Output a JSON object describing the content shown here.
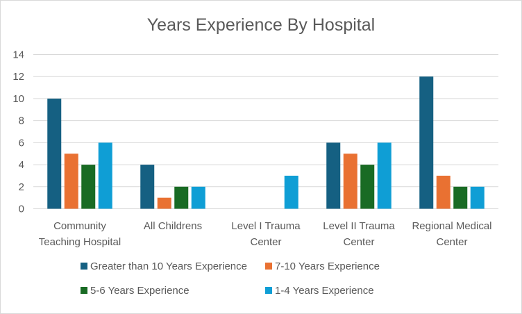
{
  "chart_data": {
    "type": "bar",
    "title": "Years Experience By Hospital",
    "xlabel": "",
    "ylabel": "",
    "ylim": [
      0,
      14
    ],
    "yticks": [
      "0",
      "2",
      "4",
      "6",
      "8",
      "10",
      "12",
      "14"
    ],
    "grid": true,
    "legend_position": "bottom",
    "categories": [
      [
        "Community",
        "Teaching Hospital"
      ],
      [
        "All Childrens"
      ],
      [
        "Level I Trauma",
        "Center"
      ],
      [
        "Level II Trauma",
        "Center"
      ],
      [
        "Regional Medical",
        "Center"
      ]
    ],
    "series": [
      {
        "name": "Greater than 10 Years Experience",
        "color": "#156082",
        "values": [
          10,
          4,
          0,
          6,
          12
        ]
      },
      {
        "name": "7-10 Years Experience",
        "color": "#E97132",
        "values": [
          5,
          1,
          0,
          5,
          3
        ]
      },
      {
        "name": "5-6 Years Experience",
        "color": "#196B24",
        "values": [
          4,
          2,
          0,
          4,
          2
        ]
      },
      {
        "name": "1-4 Years Experience",
        "color": "#0F9ED5",
        "values": [
          6,
          2,
          3,
          6,
          2
        ]
      }
    ]
  }
}
